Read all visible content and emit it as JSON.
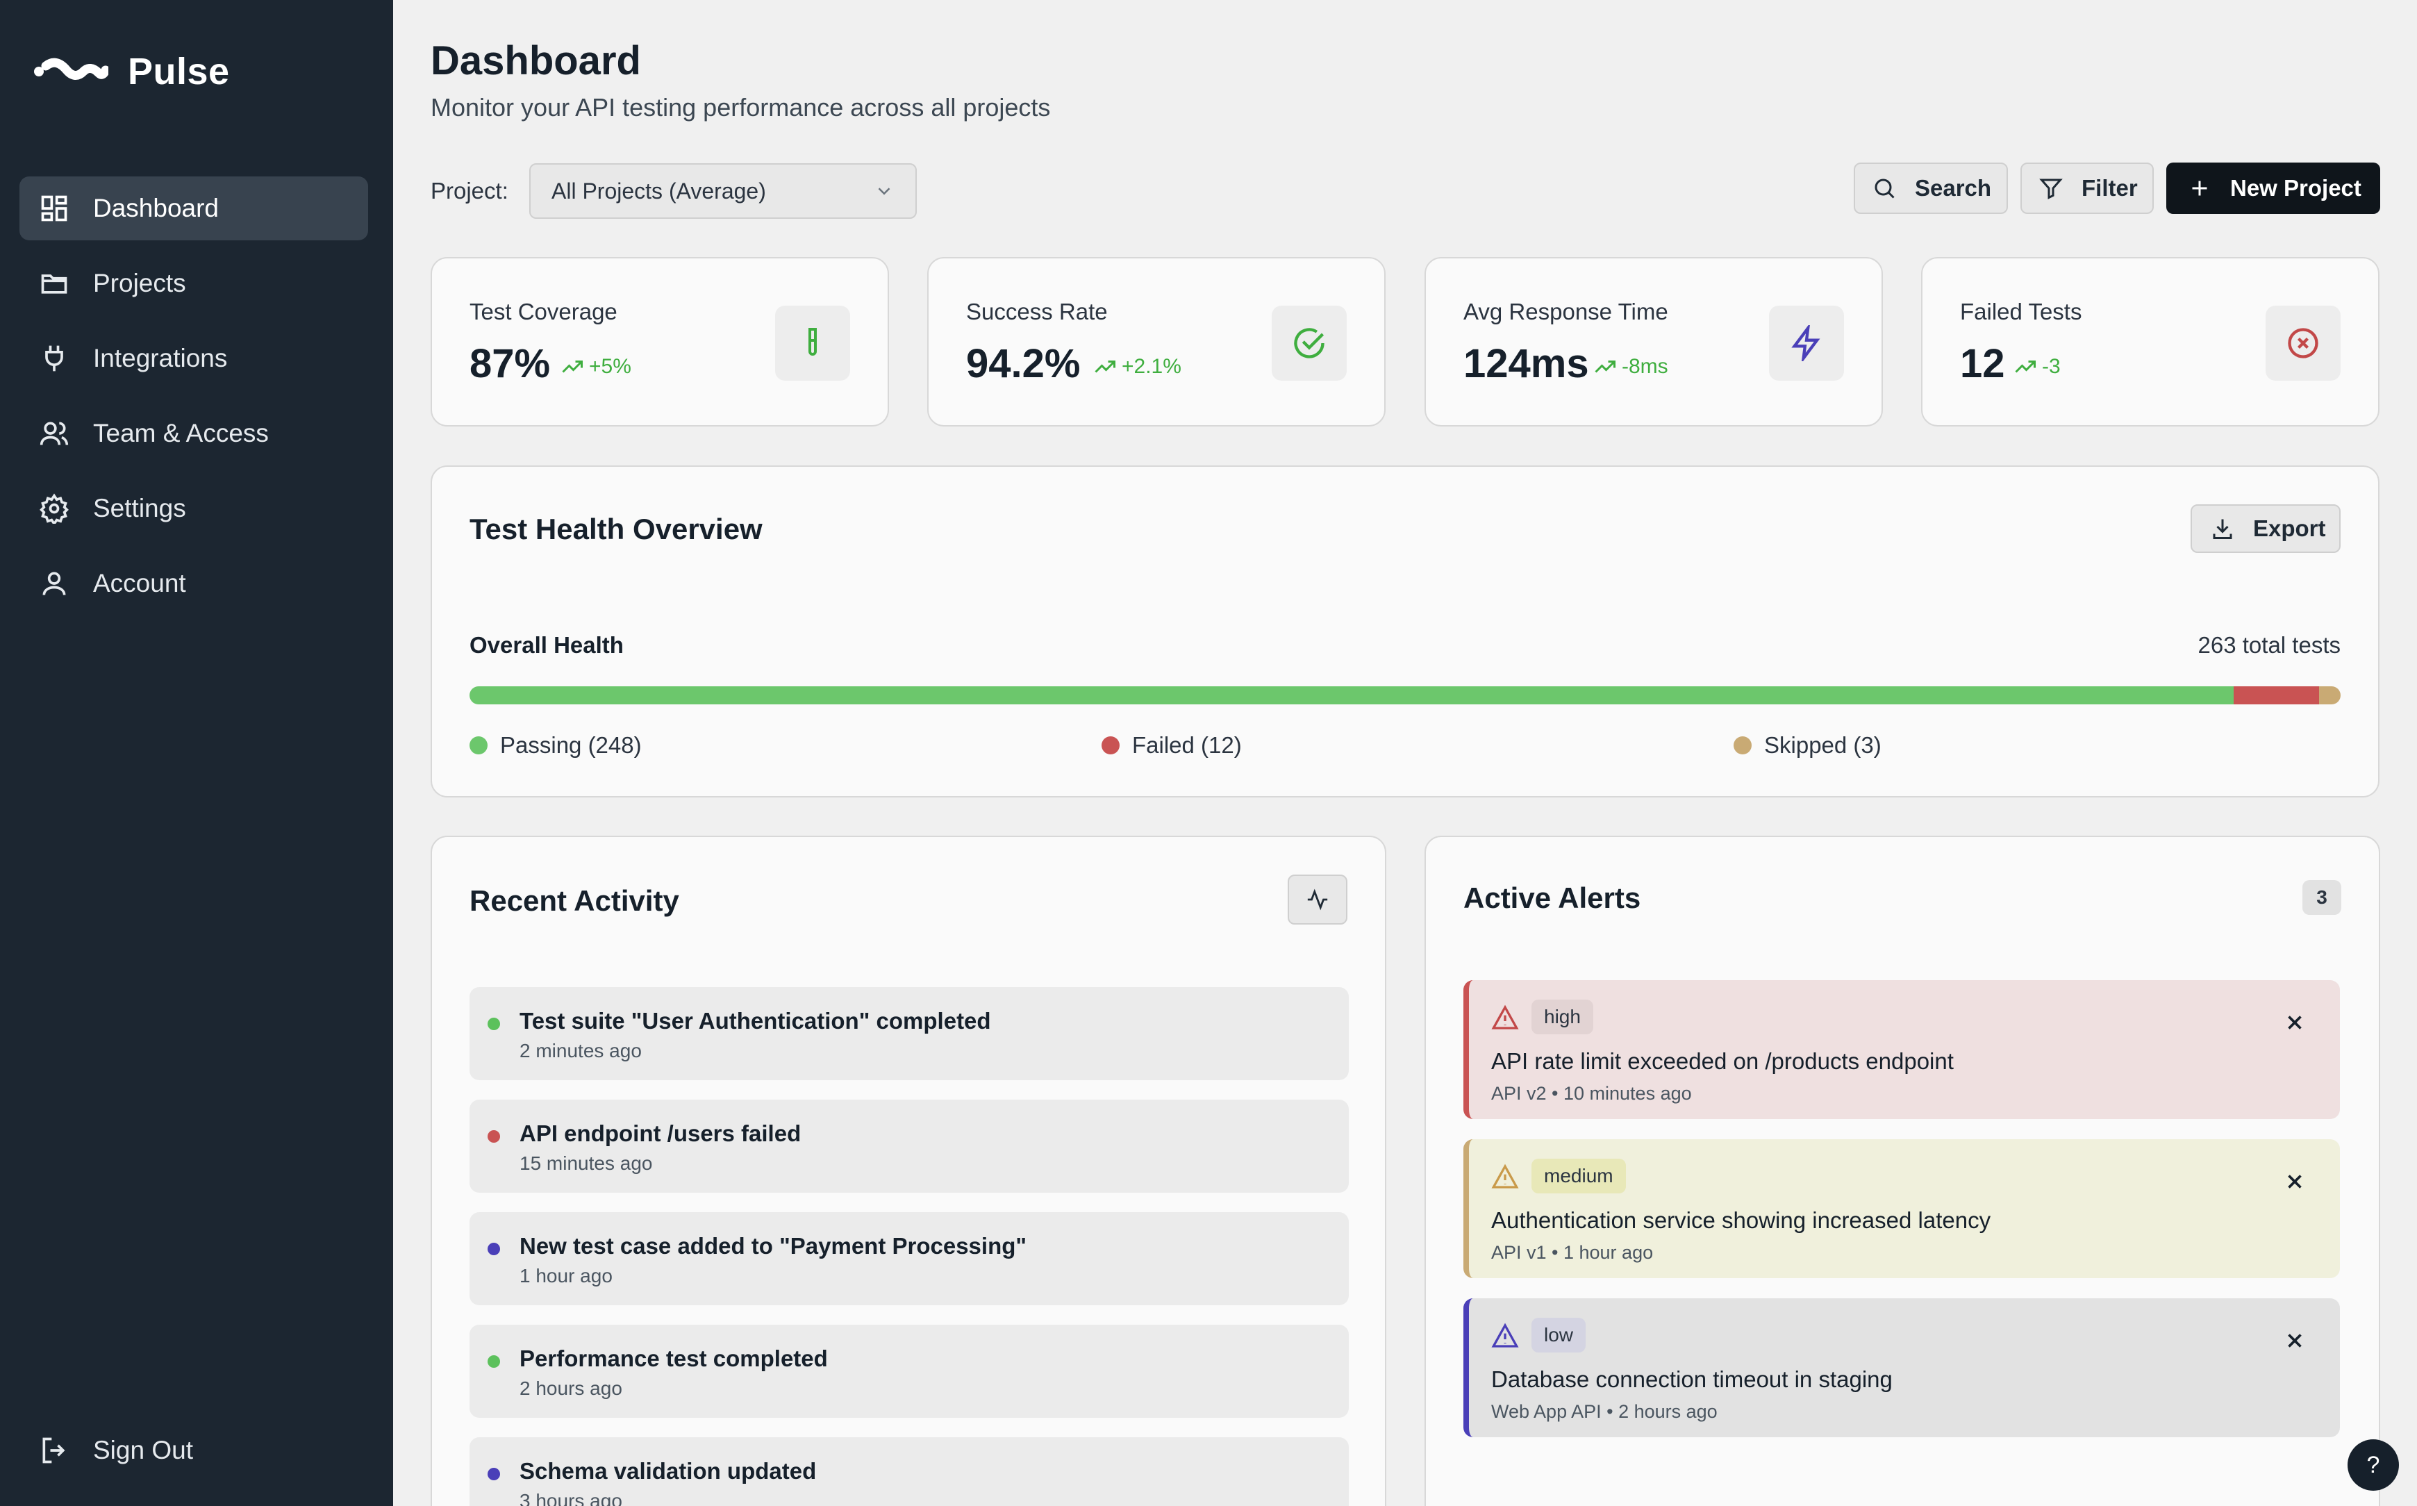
{
  "app": {
    "name": "Pulse"
  },
  "sidebar": {
    "items": [
      {
        "label": "Dashboard",
        "icon": "dashboard-icon",
        "active": true
      },
      {
        "label": "Projects",
        "icon": "folder-icon"
      },
      {
        "label": "Integrations",
        "icon": "plug-icon"
      },
      {
        "label": "Team & Access",
        "icon": "users-icon"
      },
      {
        "label": "Settings",
        "icon": "gear-icon"
      },
      {
        "label": "Account",
        "icon": "user-icon"
      }
    ],
    "sign_out": "Sign Out"
  },
  "header": {
    "title": "Dashboard",
    "subtitle": "Monitor your API testing performance across all projects",
    "project_label": "Project:",
    "project_value": "All Projects (Average)",
    "search_label": "Search",
    "filter_label": "Filter",
    "new_project_label": "New Project"
  },
  "stats": [
    {
      "label": "Test Coverage",
      "value": "87%",
      "trend": "+5%",
      "icon": "test-tube-icon",
      "color": "#3fae3f"
    },
    {
      "label": "Success Rate",
      "value": "94.2%",
      "trend": "+2.1%",
      "icon": "check-circle-icon",
      "color": "#3fae3f"
    },
    {
      "label": "Avg Response Time",
      "value": "124ms",
      "trend": "-8ms",
      "icon": "lightning-icon",
      "color": "#4a3fb8"
    },
    {
      "label": "Failed Tests",
      "value": "12",
      "trend": "-3",
      "icon": "x-circle-icon",
      "color": "#c24848"
    }
  ],
  "health": {
    "title": "Test Health Overview",
    "export_label": "Export",
    "overall_label": "Overall Health",
    "total_label": "263 total tests",
    "passing": 248,
    "failed": 12,
    "skipped": 3,
    "legend": {
      "passing": "Passing (248)",
      "failed": "Failed (12)",
      "skipped": "Skipped (3)"
    },
    "colors": {
      "passing": "#6cc76c",
      "failed": "#c95353",
      "skipped": "#c9aa74"
    }
  },
  "activity": {
    "title": "Recent Activity",
    "items": [
      {
        "title": "Test suite \"User Authentication\" completed",
        "time": "2 minutes ago",
        "color": "#5cc15c"
      },
      {
        "title": "API endpoint /users failed",
        "time": "15 minutes ago",
        "color": "#c95353"
      },
      {
        "title": "New test case added to \"Payment Processing\"",
        "time": "1 hour ago",
        "color": "#4a3fb8"
      },
      {
        "title": "Performance test completed",
        "time": "2 hours ago",
        "color": "#5cc15c"
      },
      {
        "title": "Schema validation updated",
        "time": "3 hours ago",
        "color": "#4a3fb8"
      }
    ]
  },
  "alerts": {
    "title": "Active Alerts",
    "count": "3",
    "items": [
      {
        "severity": "high",
        "title": "API rate limit exceeded on /products endpoint",
        "meta": "API v2 • 10 minutes ago",
        "bg": "#efe0e0",
        "border": "#c95353",
        "badge_bg": "#e2d3d3",
        "icon_color": "#c24848"
      },
      {
        "severity": "medium",
        "title": "Authentication service showing increased latency",
        "meta": "API v1 • 1 hour ago",
        "bg": "#f0f0dc",
        "border": "#c9aa74",
        "badge_bg": "#e8e8b8",
        "icon_color": "#c99a4a"
      },
      {
        "severity": "low",
        "title": "Database connection timeout in staging",
        "meta": "Web App API • 2 hours ago",
        "bg": "#e2e2e2",
        "border": "#4a3fb8",
        "badge_bg": "#d4d4e2",
        "icon_color": "#4a3fb8"
      }
    ]
  },
  "help_label": "?"
}
